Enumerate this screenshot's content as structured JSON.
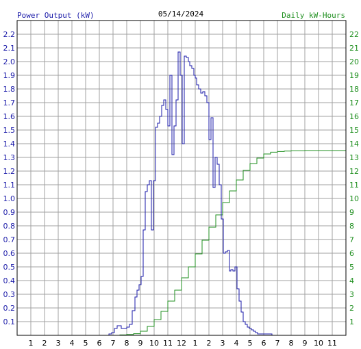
{
  "chart_data": {
    "type": "line",
    "title": "05/14/2024",
    "ylabel_left": "Power Output (kW)",
    "ylabel_right": "Daily kW-Hours",
    "x_tick_labels": [
      "1",
      "2",
      "3",
      "4",
      "5",
      "6",
      "7",
      "8",
      "9",
      "10",
      "11",
      "12",
      "1",
      "2",
      "3",
      "4",
      "5",
      "6",
      "7",
      "8",
      "9",
      "10",
      "11"
    ],
    "x_range_hours": [
      0,
      24
    ],
    "ylim_left": [
      0,
      2.3
    ],
    "ylim_right": [
      0,
      23
    ],
    "y_left_ticks": [
      "0.1",
      "0.2",
      "0.3",
      "0.4",
      "0.5",
      "0.6",
      "0.7",
      "0.8",
      "0.9",
      "1.0",
      "1.1",
      "1.2",
      "1.3",
      "1.4",
      "1.5",
      "1.6",
      "1.7",
      "1.8",
      "1.9",
      "2.0",
      "2.1",
      "2.2"
    ],
    "y_right_ticks": [
      "1",
      "2",
      "3",
      "4",
      "5",
      "6",
      "7",
      "8",
      "9",
      "10",
      "11",
      "12",
      "13",
      "14",
      "15",
      "16",
      "17",
      "18",
      "19",
      "20",
      "21",
      "22"
    ],
    "grid": true,
    "colors": {
      "power": "#1a1aa8",
      "energy": "#1f8f1f",
      "grid": "#a0a0a0",
      "left_axis_text": "#1a1aa8",
      "right_axis_text": "#1f8f1f",
      "title_text": "#000000"
    },
    "series": [
      {
        "name": "Power Output (kW)",
        "axis": "left",
        "x_hour": [
          0,
          6.5,
          6.7,
          6.9,
          7.1,
          7.3,
          7.6,
          7.8,
          8.0,
          8.2,
          8.4,
          8.6,
          8.75,
          8.9,
          9.05,
          9.2,
          9.35,
          9.5,
          9.65,
          9.8,
          9.95,
          10.1,
          10.25,
          10.4,
          10.55,
          10.7,
          10.85,
          11.0,
          11.15,
          11.3,
          11.45,
          11.6,
          11.75,
          11.9,
          12.05,
          12.2,
          12.35,
          12.5,
          12.6,
          12.75,
          12.9,
          13.0,
          13.1,
          13.25,
          13.4,
          13.55,
          13.7,
          13.85,
          14.0,
          14.15,
          14.3,
          14.45,
          14.6,
          14.75,
          14.9,
          15.05,
          15.2,
          15.35,
          15.5,
          15.6,
          15.75,
          15.9,
          16.05,
          16.2,
          16.35,
          16.5,
          16.65,
          16.8,
          16.95,
          17.1,
          17.25,
          17.4,
          17.55,
          17.7,
          17.85,
          18.0,
          18.15,
          18.3,
          18.45,
          18.6,
          18.75,
          18.9,
          19.05,
          19.2,
          19.35,
          19.5,
          19.7,
          19.9,
          20.2,
          20.5,
          20.8,
          24
        ],
        "values": [
          0,
          0,
          0.01,
          0.02,
          0.05,
          0.07,
          0.05,
          0.05,
          0.06,
          0.08,
          0.18,
          0.28,
          0.33,
          0.37,
          0.43,
          0.77,
          1.05,
          1.1,
          1.13,
          0.77,
          1.13,
          1.52,
          1.55,
          1.6,
          1.68,
          1.72,
          1.65,
          1.53,
          1.9,
          1.32,
          1.53,
          1.72,
          2.07,
          1.9,
          1.4,
          2.04,
          2.03,
          2.0,
          1.97,
          1.95,
          1.9,
          1.88,
          1.83,
          1.8,
          1.77,
          1.78,
          1.75,
          1.7,
          1.43,
          1.59,
          1.08,
          1.3,
          1.25,
          1.1,
          0.85,
          0.6,
          0.61,
          0.62,
          0.47,
          0.48,
          0.47,
          0.5,
          0.34,
          0.25,
          0.17,
          0.1,
          0.08,
          0.06,
          0.05,
          0.04,
          0.03,
          0.02,
          0.01,
          0.01,
          0.01,
          0.01,
          0.01,
          0.01,
          0.01,
          0,
          0,
          0,
          0,
          0,
          0,
          0,
          0,
          0,
          0,
          0,
          0,
          0
        ]
      },
      {
        "name": "Daily kW-Hours",
        "axis": "right",
        "x_hour": [
          0,
          6.5,
          7.5,
          8.0,
          8.5,
          9.0,
          9.5,
          10.0,
          10.5,
          11.0,
          11.5,
          12.0,
          12.5,
          13.0,
          13.5,
          14.0,
          14.5,
          15.0,
          15.5,
          16.0,
          16.5,
          17.0,
          17.5,
          18.0,
          18.5,
          19.0,
          19.5,
          20.0,
          21.0,
          24
        ],
        "values": [
          0,
          0,
          0.03,
          0.06,
          0.12,
          0.3,
          0.65,
          1.15,
          1.75,
          2.5,
          3.3,
          4.2,
          5.0,
          5.95,
          6.95,
          7.9,
          8.8,
          9.7,
          10.55,
          11.35,
          12.05,
          12.55,
          12.95,
          13.25,
          13.38,
          13.43,
          13.46,
          13.48,
          13.5,
          13.5
        ]
      }
    ]
  }
}
